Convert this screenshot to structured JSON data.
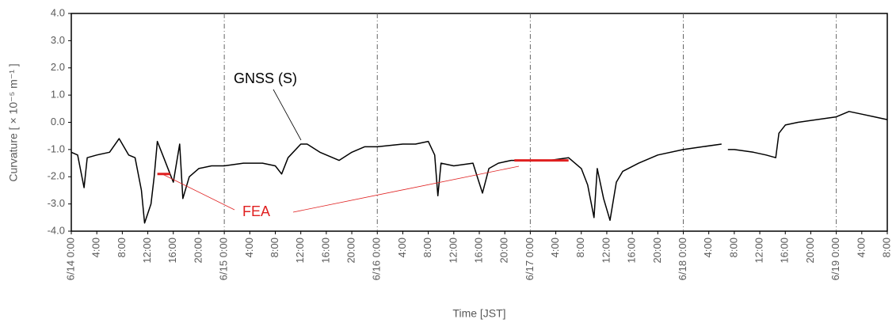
{
  "chart_data": {
    "type": "line",
    "x_label": "Time [JST]",
    "y_label": "Curvature [ × 10⁻⁵ m⁻¹ ]",
    "ylim": [
      -4,
      4
    ],
    "yticks": [
      {
        "value": 4,
        "label": "4.0"
      },
      {
        "value": 3,
        "label": "3.0"
      },
      {
        "value": 2,
        "label": "2.0"
      },
      {
        "value": 1,
        "label": "1.0"
      },
      {
        "value": 0,
        "label": "0.0"
      },
      {
        "value": -1,
        "label": "-1.0"
      },
      {
        "value": -2,
        "label": "-2.0"
      },
      {
        "value": -3,
        "label": "-3.0"
      },
      {
        "value": -4,
        "label": "-4.0"
      }
    ],
    "xlim": [
      "6/14 0:00",
      "6/19 8:00"
    ],
    "xticks": [
      {
        "value": "6/14 0:00",
        "label": "6/14 0:00"
      },
      {
        "value": "6/14 4:00",
        "label": "4:00"
      },
      {
        "value": "6/14 8:00",
        "label": "8:00"
      },
      {
        "value": "6/14 12:00",
        "label": "12:00"
      },
      {
        "value": "6/14 16:00",
        "label": "16:00"
      },
      {
        "value": "6/14 20:00",
        "label": "20:00"
      },
      {
        "value": "6/15 0:00",
        "label": "6/15 0:00"
      },
      {
        "value": "6/15 4:00",
        "label": "4:00"
      },
      {
        "value": "6/15 8:00",
        "label": "8:00"
      },
      {
        "value": "6/15 12:00",
        "label": "12:00"
      },
      {
        "value": "6/15 16:00",
        "label": "16:00"
      },
      {
        "value": "6/15 20:00",
        "label": "20:00"
      },
      {
        "value": "6/16 0:00",
        "label": "6/16 0:00"
      },
      {
        "value": "6/16 4:00",
        "label": "4:00"
      },
      {
        "value": "6/16 8:00",
        "label": "8:00"
      },
      {
        "value": "6/16 12:00",
        "label": "12:00"
      },
      {
        "value": "6/16 16:00",
        "label": "16:00"
      },
      {
        "value": "6/16 20:00",
        "label": "20:00"
      },
      {
        "value": "6/17 0:00",
        "label": "6/17 0:00"
      },
      {
        "value": "6/17 4:00",
        "label": "4:00"
      },
      {
        "value": "6/17 8:00",
        "label": "8:00"
      },
      {
        "value": "6/17 12:00",
        "label": "12:00"
      },
      {
        "value": "6/17 16:00",
        "label": "16:00"
      },
      {
        "value": "6/17 20:00",
        "label": "20:00"
      },
      {
        "value": "6/18 0:00",
        "label": "6/18 0:00"
      },
      {
        "value": "6/18 4:00",
        "label": "4:00"
      },
      {
        "value": "6/18 8:00",
        "label": "8:00"
      },
      {
        "value": "6/18 12:00",
        "label": "12:00"
      },
      {
        "value": "6/18 16:00",
        "label": "16:00"
      },
      {
        "value": "6/18 20:00",
        "label": "20:00"
      },
      {
        "value": "6/19 0:00",
        "label": "6/19 0:00"
      },
      {
        "value": "6/19 4:00",
        "label": "4:00"
      },
      {
        "value": "6/19 8:00",
        "label": "8:00"
      }
    ],
    "series": [
      {
        "name": "GNSS (S)",
        "color": "#000000",
        "x": [
          "6/14 0:00",
          "6/14 1:00",
          "6/14 2:00",
          "6/14 2:30",
          "6/14 4:00",
          "6/14 6:00",
          "6/14 7:30",
          "6/14 9:00",
          "6/14 10:00",
          "6/14 11:00",
          "6/14 11:30",
          "6/14 12:30",
          "6/14 13:00",
          "6/14 13:30",
          "6/14 14:30",
          "6/14 15:30",
          "6/14 16:00",
          "6/14 17:00",
          "6/14 17:30",
          "6/14 18:30",
          "6/14 20:00",
          "6/14 22:00",
          "6/15 0:00",
          "6/15 3:00",
          "6/15 6:00",
          "6/15 8:00",
          "6/15 9:00",
          "6/15 10:00",
          "6/15 12:00",
          "6/15 13:00",
          "6/15 15:00",
          "6/15 18:00",
          "6/15 20:00",
          "6/15 22:00",
          "6/16 0:00",
          "6/16 4:00",
          "6/16 6:00",
          "6/16 8:00",
          "6/16 9:00",
          "6/16 9:30",
          "6/16 10:00",
          "6/16 12:00",
          "6/16 15:00",
          "6/16 16:30",
          "6/16 17:30",
          "6/16 19:00",
          "6/16 21:00",
          "6/17 0:00",
          "6/17 3:00",
          "6/17 6:00",
          "6/17 8:00",
          "6/17 9:00",
          "6/17 10:00",
          "6/17 10:30",
          "6/17 11:30",
          "6/17 12:30",
          "6/17 13:30",
          "6/17 14:30",
          "6/17 17:00",
          "6/17 20:00",
          "6/18 0:00",
          "6/18 3:00",
          "6/18 6:00",
          "6/18 6:30",
          "6/18 7:00",
          "6/18 8:00",
          "6/18 11:00",
          "6/18 13:00",
          "6/18 14:30",
          "6/18 15:00",
          "6/18 16:00",
          "6/18 18:00",
          "6/19 0:00",
          "6/19 2:00",
          "6/19 4:00",
          "6/19 6:00",
          "6/19 8:00"
        ],
        "values": [
          -1.1,
          -1.2,
          -2.4,
          -1.3,
          -1.2,
          -1.1,
          -0.6,
          -1.2,
          -1.3,
          -2.5,
          -3.7,
          -3.0,
          -2.0,
          -0.7,
          -1.3,
          -1.9,
          -2.2,
          -0.8,
          -2.8,
          -2.0,
          -1.7,
          -1.6,
          -1.6,
          -1.5,
          -1.5,
          -1.6,
          -1.9,
          -1.3,
          -0.8,
          -0.8,
          -1.1,
          -1.4,
          -1.1,
          -0.9,
          -0.9,
          -0.8,
          -0.8,
          -0.7,
          -1.2,
          -2.7,
          -1.5,
          -1.6,
          -1.5,
          -2.6,
          -1.7,
          -1.5,
          -1.4,
          -1.4,
          -1.4,
          -1.3,
          -1.7,
          -2.3,
          -3.5,
          -1.7,
          -2.8,
          -3.6,
          -2.2,
          -1.8,
          -1.5,
          -1.2,
          -1.0,
          -0.9,
          -0.8,
          null,
          -1.0,
          -1.0,
          -1.1,
          -1.2,
          -1.3,
          -0.4,
          -0.1,
          0.0,
          0.2,
          0.4,
          0.3,
          0.2,
          0.1
        ]
      },
      {
        "name": "FEA",
        "color": "#e02020",
        "x": [
          "6/14 13:30",
          "6/14 15:30",
          "6/16 0:00",
          "6/16 21:30",
          "6/17 6:00"
        ],
        "values": [
          -1.9,
          -1.9,
          null,
          -1.4,
          -1.4
        ]
      }
    ]
  }
}
